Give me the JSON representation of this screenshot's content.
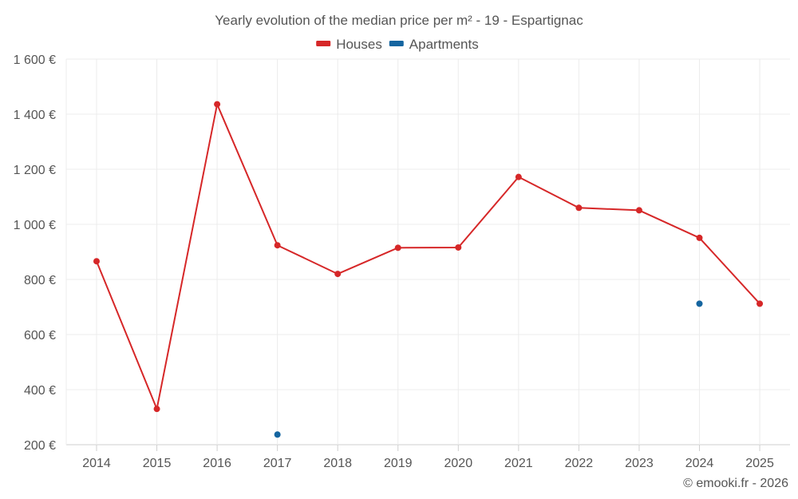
{
  "chart_data": {
    "type": "line",
    "title": "Yearly evolution of the median price per m² - 19 - Espartignac",
    "categories": [
      "2014",
      "2015",
      "2016",
      "2017",
      "2018",
      "2019",
      "2020",
      "2021",
      "2022",
      "2023",
      "2024",
      "2025"
    ],
    "ylim": [
      200,
      1600
    ],
    "yticks": [
      200,
      400,
      600,
      800,
      1000,
      1200,
      1400,
      1600
    ],
    "ytick_labels": [
      "200 €",
      "400 €",
      "600 €",
      "800 €",
      "1 000 €",
      "1 200 €",
      "1 400 €",
      "1 600 €"
    ],
    "grid": true,
    "legend_position": "top-center",
    "series": [
      {
        "name": "Houses",
        "color": "#d62728",
        "values": [
          866,
          330,
          1436,
          924,
          820,
          915,
          916,
          1172,
          1060,
          1051,
          951,
          712
        ]
      },
      {
        "name": "Apartments",
        "color": "#1565a0",
        "values": [
          null,
          null,
          null,
          237,
          null,
          null,
          null,
          null,
          null,
          null,
          712,
          null
        ]
      }
    ],
    "credit": "© emooki.fr - 2026"
  }
}
